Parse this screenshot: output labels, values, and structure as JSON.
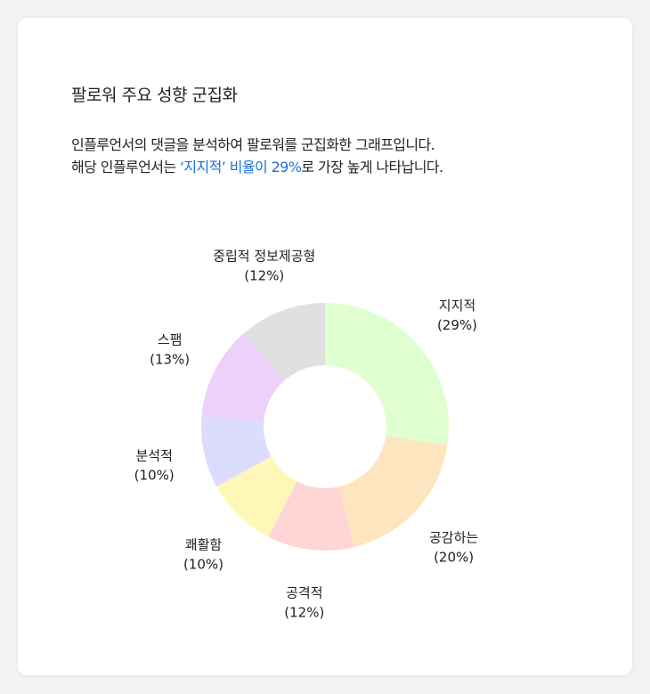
{
  "card": {
    "title": "팔로워 주요 성향 군집화",
    "desc_line1": "인플루언서의 댓글을 분석하여 팔로워를 군집화한 그래프입니다.",
    "desc_line2_prefix": "해당 인플루언서는 ",
    "desc_line2_highlight": "‘지지적’ 비율이 29%",
    "desc_line2_suffix": "로 가장 높게 나타납니다.",
    "highlight_color": "#1f6fd8"
  },
  "chart_data": {
    "type": "pie",
    "donut": true,
    "title": "팔로워 주요 성향 군집화",
    "slices": [
      {
        "label": "지지적",
        "value": 29,
        "value_label": "(29%)",
        "color": "#e0ffd0"
      },
      {
        "label": "공감하는",
        "value": 20,
        "value_label": "(20%)",
        "color": "#fde5bf"
      },
      {
        "label": "공격적",
        "value": 12,
        "value_label": "(12%)",
        "color": "#ffd6d6"
      },
      {
        "label": "쾌활함",
        "value": 10,
        "value_label": "(10%)",
        "color": "#fff7b8"
      },
      {
        "label": "분석적",
        "value": 10,
        "value_label": "(10%)",
        "color": "#dcdcff"
      },
      {
        "label": "스팸",
        "value": 13,
        "value_label": "(13%)",
        "color": "#ecd1fb"
      },
      {
        "label": "중립적 정보제공형",
        "value": 12,
        "value_label": "(12%)",
        "color": "#e0e0e0"
      }
    ]
  }
}
